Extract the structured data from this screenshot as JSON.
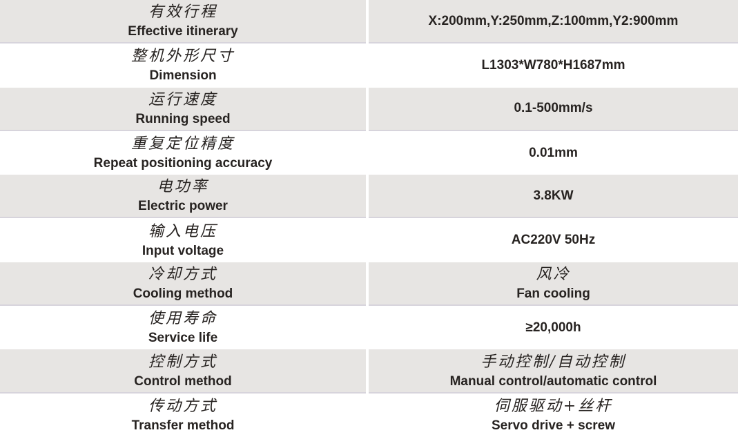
{
  "table": {
    "colors": {
      "shaded_row_bg": "#e7e5e3",
      "row_border": "#d7d4dc",
      "text": "#272321",
      "plain_row_bg": "#ffffff"
    },
    "rows": [
      {
        "label_cn": "有效行程",
        "label_en": "Effective itinerary",
        "value": "X:200mm,Y:250mm,Z:100mm,Y2:900mm",
        "shaded": true
      },
      {
        "label_cn": "整机外形尺寸",
        "label_en": "Dimension",
        "value": "L1303*W780*H1687mm",
        "shaded": false
      },
      {
        "label_cn": "运行速度",
        "label_en": "Running speed",
        "value": "0.1-500mm/s",
        "shaded": true
      },
      {
        "label_cn": "重复定位精度",
        "label_en": "Repeat positioning accuracy",
        "value": "0.01mm",
        "shaded": false
      },
      {
        "label_cn": "电功率",
        "label_en": "Electric power",
        "value": "3.8KW",
        "shaded": true
      },
      {
        "label_cn": "输入电压",
        "label_en": "Input voltage",
        "value": "AC220V 50Hz",
        "shaded": false
      },
      {
        "label_cn": "冷却方式",
        "label_en": "Cooling method",
        "value_cn": "风冷",
        "value_en": "Fan cooling",
        "shaded": true
      },
      {
        "label_cn": "使用寿命",
        "label_en": "Service life",
        "value": "≥20,000h",
        "shaded": false
      },
      {
        "label_cn": "控制方式",
        "label_en": "Control method",
        "value_cn": "手动控制/自动控制",
        "value_en": "Manual control/automatic control",
        "shaded": true
      },
      {
        "label_cn": "传动方式",
        "label_en": "Transfer method",
        "value_cn": "伺服驱动+丝杆",
        "value_en": "Servo drive + screw",
        "shaded": false
      }
    ]
  }
}
